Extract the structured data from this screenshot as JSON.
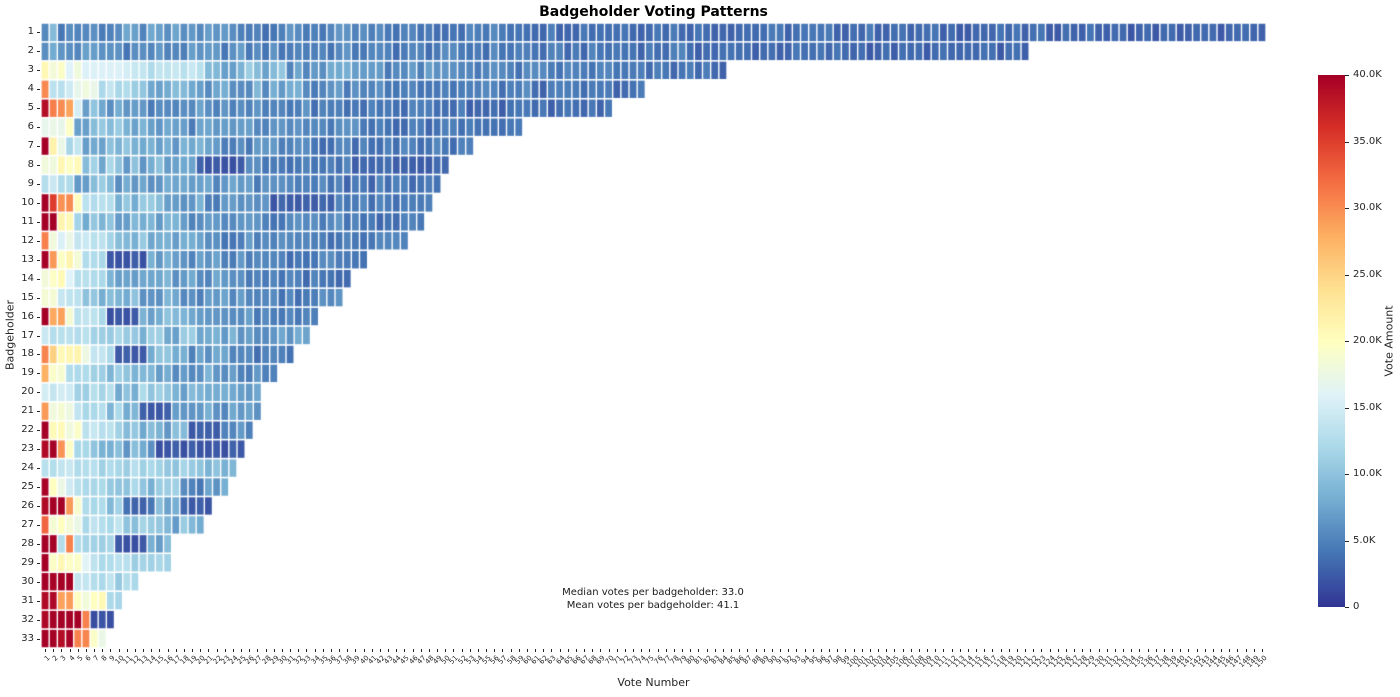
{
  "chart_data": {
    "type": "heatmap",
    "title": "Badgeholder Voting Patterns",
    "xlabel": "Vote Number",
    "ylabel": "Badgeholder",
    "x_tick_range": {
      "min": 1,
      "max": 150
    },
    "colormap": {
      "name": "RdYlBu_r",
      "vmin": 0,
      "vmax": 40000,
      "stops": [
        "#313695",
        "#4575b4",
        "#74add1",
        "#abd9e9",
        "#e0f3f8",
        "#ffffbf",
        "#fee090",
        "#fdae61",
        "#f46d43",
        "#d73027",
        "#a50026"
      ]
    },
    "colorbar": {
      "label": "Vote Amount",
      "tick_labels": [
        "0",
        "5.0K",
        "10.0K",
        "15.0K",
        "20.0K",
        "25.0K",
        "30.0K",
        "35.0K",
        "40.0K"
      ]
    },
    "annotations": {
      "median": "Median votes per badgeholder: 33.0",
      "mean": "Mean votes per badgeholder: 41.1"
    },
    "texture_jitter": {
      "low_amp": 0.28,
      "mid_amp": 0.1,
      "high_amp": 0.05
    },
    "rows": [
      {
        "badgeholder": 1,
        "votes": 150,
        "segments": [
          [
            2,
            7500
          ],
          [
            8,
            5500
          ],
          [
            15,
            6000
          ],
          [
            15,
            5000
          ],
          [
            20,
            4500
          ],
          [
            20,
            4000
          ],
          [
            25,
            3600
          ],
          [
            25,
            3200
          ],
          [
            20,
            2800
          ]
        ]
      },
      {
        "badgeholder": 2,
        "votes": 121,
        "segments": [
          [
            2,
            7000
          ],
          [
            8,
            6000
          ],
          [
            15,
            5500
          ],
          [
            15,
            5000
          ],
          [
            20,
            4500
          ],
          [
            20,
            4000
          ],
          [
            21,
            3400
          ],
          [
            20,
            3000
          ]
        ]
      },
      {
        "badgeholder": 3,
        "votes": 84,
        "segments": [
          [
            1,
            22000
          ],
          [
            2,
            20000
          ],
          [
            2,
            16500
          ],
          [
            6,
            15500
          ],
          [
            9,
            13000
          ],
          [
            10,
            9000
          ],
          [
            12,
            7000
          ],
          [
            14,
            5500
          ],
          [
            14,
            4500
          ],
          [
            14,
            3800
          ]
        ]
      },
      {
        "badgeholder": 4,
        "votes": 74,
        "segments": [
          [
            1,
            31000
          ],
          [
            3,
            13500
          ],
          [
            3,
            16500
          ],
          [
            4,
            13000
          ],
          [
            9,
            9500
          ],
          [
            12,
            7000
          ],
          [
            14,
            5500
          ],
          [
            14,
            4500
          ],
          [
            14,
            3800
          ]
        ]
      },
      {
        "badgeholder": 5,
        "votes": 70,
        "segments": [
          [
            1,
            40000
          ],
          [
            3,
            30000
          ],
          [
            1,
            16500
          ],
          [
            5,
            8000
          ],
          [
            10,
            6000
          ],
          [
            14,
            5000
          ],
          [
            18,
            4200
          ],
          [
            18,
            3500
          ]
        ]
      },
      {
        "badgeholder": 6,
        "votes": 59,
        "segments": [
          [
            4,
            18500
          ],
          [
            6,
            8500
          ],
          [
            8,
            7000
          ],
          [
            10,
            6000
          ],
          [
            13,
            5000
          ],
          [
            18,
            4000
          ]
        ]
      },
      {
        "badgeholder": 7,
        "votes": 53,
        "segments": [
          [
            1,
            40000
          ],
          [
            1,
            21000
          ],
          [
            1,
            19000
          ],
          [
            2,
            13000
          ],
          [
            6,
            9000
          ],
          [
            10,
            7000
          ],
          [
            12,
            5500
          ],
          [
            20,
            4200
          ]
        ]
      },
      {
        "badgeholder": 8,
        "votes": 50,
        "segments": [
          [
            5,
            19500
          ],
          [
            4,
            10000
          ],
          [
            6,
            8000
          ],
          [
            4,
            6500
          ],
          [
            6,
            2200
          ],
          [
            8,
            5000
          ],
          [
            5,
            4200
          ],
          [
            12,
            3300
          ]
        ]
      },
      {
        "badgeholder": 9,
        "votes": 49,
        "segments": [
          [
            4,
            13000
          ],
          [
            5,
            9000
          ],
          [
            8,
            7500
          ],
          [
            10,
            6000
          ],
          [
            10,
            5000
          ],
          [
            12,
            4000
          ]
        ]
      },
      {
        "badgeholder": 10,
        "votes": 48,
        "segments": [
          [
            1,
            40000
          ],
          [
            1,
            36000
          ],
          [
            2,
            30000
          ],
          [
            1,
            21000
          ],
          [
            4,
            13000
          ],
          [
            5,
            9000
          ],
          [
            6,
            7500
          ],
          [
            8,
            6000
          ],
          [
            8,
            2500
          ],
          [
            6,
            4500
          ],
          [
            6,
            3800
          ]
        ]
      },
      {
        "badgeholder": 11,
        "votes": 47,
        "segments": [
          [
            2,
            40000
          ],
          [
            2,
            19500
          ],
          [
            1,
            12000
          ],
          [
            5,
            9000
          ],
          [
            7,
            7500
          ],
          [
            9,
            6000
          ],
          [
            11,
            5000
          ],
          [
            10,
            4000
          ]
        ]
      },
      {
        "badgeholder": 12,
        "votes": 45,
        "segments": [
          [
            1,
            30000
          ],
          [
            1,
            20000
          ],
          [
            2,
            16500
          ],
          [
            4,
            13000
          ],
          [
            5,
            9000
          ],
          [
            8,
            7000
          ],
          [
            10,
            5500
          ],
          [
            14,
            4200
          ]
        ]
      },
      {
        "badgeholder": 13,
        "votes": 40,
        "segments": [
          [
            1,
            40000
          ],
          [
            1,
            30000
          ],
          [
            3,
            19500
          ],
          [
            3,
            13000
          ],
          [
            5,
            2200
          ],
          [
            5,
            8000
          ],
          [
            8,
            6000
          ],
          [
            14,
            4500
          ]
        ]
      },
      {
        "badgeholder": 14,
        "votes": 38,
        "segments": [
          [
            3,
            19000
          ],
          [
            1,
            16000
          ],
          [
            4,
            13000
          ],
          [
            6,
            9000
          ],
          [
            8,
            7000
          ],
          [
            8,
            5500
          ],
          [
            8,
            4500
          ]
        ]
      },
      {
        "badgeholder": 15,
        "votes": 37,
        "segments": [
          [
            2,
            18500
          ],
          [
            3,
            13000
          ],
          [
            5,
            10000
          ],
          [
            7,
            8000
          ],
          [
            8,
            6500
          ],
          [
            12,
            5000
          ]
        ]
      },
      {
        "badgeholder": 16,
        "votes": 34,
        "segments": [
          [
            1,
            40000
          ],
          [
            2,
            29500
          ],
          [
            1,
            20000
          ],
          [
            4,
            13000
          ],
          [
            4,
            2200
          ],
          [
            6,
            8000
          ],
          [
            8,
            6000
          ],
          [
            8,
            4500
          ]
        ]
      },
      {
        "badgeholder": 17,
        "votes": 33,
        "segments": [
          [
            6,
            13000
          ],
          [
            6,
            11000
          ],
          [
            7,
            9000
          ],
          [
            7,
            7500
          ],
          [
            7,
            6500
          ]
        ]
      },
      {
        "badgeholder": 18,
        "votes": 31,
        "segments": [
          [
            1,
            30000
          ],
          [
            1,
            25000
          ],
          [
            3,
            19500
          ],
          [
            1,
            16000
          ],
          [
            3,
            13000
          ],
          [
            4,
            2200
          ],
          [
            5,
            8000
          ],
          [
            6,
            6500
          ],
          [
            7,
            5000
          ]
        ]
      },
      {
        "badgeholder": 19,
        "votes": 29,
        "segments": [
          [
            1,
            27000
          ],
          [
            2,
            19500
          ],
          [
            1,
            13000
          ],
          [
            4,
            12000
          ],
          [
            6,
            9000
          ],
          [
            7,
            7000
          ],
          [
            8,
            5500
          ]
        ]
      },
      {
        "badgeholder": 20,
        "votes": 27,
        "segments": [
          [
            4,
            14000
          ],
          [
            5,
            12000
          ],
          [
            6,
            10000
          ],
          [
            6,
            8000
          ],
          [
            6,
            6500
          ]
        ]
      },
      {
        "badgeholder": 21,
        "votes": 27,
        "segments": [
          [
            1,
            30000
          ],
          [
            3,
            19500
          ],
          [
            4,
            13000
          ],
          [
            4,
            10000
          ],
          [
            4,
            2500
          ],
          [
            5,
            8000
          ],
          [
            6,
            6000
          ]
        ]
      },
      {
        "badgeholder": 22,
        "votes": 26,
        "segments": [
          [
            1,
            40000
          ],
          [
            4,
            19500
          ],
          [
            4,
            13000
          ],
          [
            5,
            10000
          ],
          [
            4,
            8000
          ],
          [
            4,
            2500
          ],
          [
            4,
            6000
          ]
        ]
      },
      {
        "badgeholder": 23,
        "votes": 25,
        "segments": [
          [
            2,
            40000
          ],
          [
            1,
            30000
          ],
          [
            1,
            20000
          ],
          [
            2,
            13000
          ],
          [
            4,
            10000
          ],
          [
            4,
            8000
          ],
          [
            11,
            2200
          ]
        ]
      },
      {
        "badgeholder": 24,
        "votes": 24,
        "segments": [
          [
            6,
            13000
          ],
          [
            6,
            12000
          ],
          [
            6,
            11000
          ],
          [
            6,
            9500
          ]
        ]
      },
      {
        "badgeholder": 25,
        "votes": 23,
        "segments": [
          [
            1,
            40000
          ],
          [
            1,
            20000
          ],
          [
            2,
            16000
          ],
          [
            4,
            13000
          ],
          [
            5,
            11000
          ],
          [
            4,
            9000
          ],
          [
            3,
            4500
          ],
          [
            3,
            7000
          ]
        ]
      },
      {
        "badgeholder": 26,
        "votes": 21,
        "segments": [
          [
            3,
            40000
          ],
          [
            1,
            30000
          ],
          [
            1,
            20000
          ],
          [
            3,
            13000
          ],
          [
            2,
            10000
          ],
          [
            4,
            3500
          ],
          [
            3,
            8000
          ],
          [
            4,
            2500
          ]
        ]
      },
      {
        "badgeholder": 27,
        "votes": 20,
        "segments": [
          [
            1,
            33000
          ],
          [
            3,
            19500
          ],
          [
            1,
            16000
          ],
          [
            5,
            13000
          ],
          [
            5,
            10500
          ],
          [
            5,
            8500
          ]
        ]
      },
      {
        "badgeholder": 28,
        "votes": 16,
        "segments": [
          [
            2,
            40000
          ],
          [
            1,
            13000
          ],
          [
            1,
            30000
          ],
          [
            1,
            12000
          ],
          [
            4,
            11000
          ],
          [
            4,
            2200
          ],
          [
            3,
            9000
          ]
        ]
      },
      {
        "badgeholder": 29,
        "votes": 16,
        "segments": [
          [
            1,
            40000
          ],
          [
            4,
            19500
          ],
          [
            1,
            17000
          ],
          [
            5,
            13000
          ],
          [
            5,
            11000
          ]
        ]
      },
      {
        "badgeholder": 30,
        "votes": 12,
        "segments": [
          [
            4,
            40000
          ],
          [
            5,
            13000
          ],
          [
            3,
            11500
          ]
        ]
      },
      {
        "badgeholder": 31,
        "votes": 10,
        "segments": [
          [
            2,
            40000
          ],
          [
            2,
            30000
          ],
          [
            3,
            20000
          ],
          [
            1,
            19000
          ],
          [
            2,
            12000
          ]
        ]
      },
      {
        "badgeholder": 32,
        "votes": 9,
        "segments": [
          [
            5,
            40000
          ],
          [
            1,
            31000
          ],
          [
            3,
            2000
          ]
        ]
      },
      {
        "badgeholder": 33,
        "votes": 8,
        "segments": [
          [
            3,
            40000
          ],
          [
            1,
            38000
          ],
          [
            2,
            30000
          ],
          [
            1,
            20000
          ],
          [
            1,
            18500
          ]
        ]
      }
    ]
  }
}
